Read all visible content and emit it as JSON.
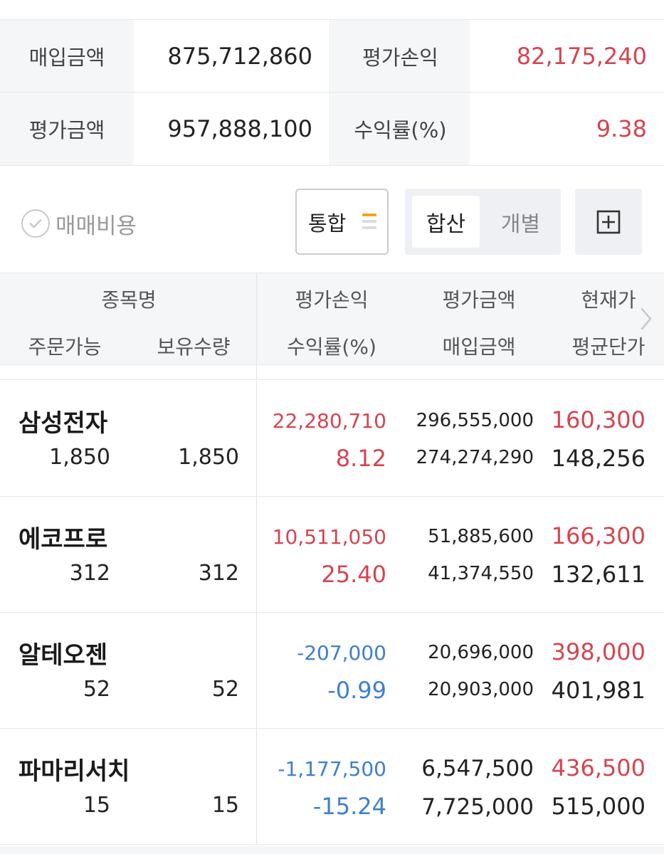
{
  "summary": {
    "purchase_label": "매입금액",
    "purchase_value": "875,712,860",
    "eval_pl_label": "평가손익",
    "eval_pl_value": "82,175,240",
    "eval_amount_label": "평가금액",
    "eval_amount_value": "957,888,100",
    "return_label": "수익률(%)",
    "return_value": "9.38"
  },
  "controls": {
    "fee_label": "매매비용",
    "merge_label": "통합",
    "seg_sum": "합산",
    "seg_individual": "개별",
    "colors": {
      "merge_bars": [
        "#f5a31a",
        "#d9dce1",
        "#d9dce1"
      ]
    }
  },
  "table": {
    "headers": {
      "name": "종목명",
      "orderable": "주문가능",
      "holding": "보유수량",
      "eval_pl": "평가손익",
      "return": "수익률(%)",
      "eval_amount": "평가금액",
      "purchase_amount": "매입금액",
      "current_price": "현재가",
      "avg_price": "평균단가"
    },
    "rows": [
      {
        "name": "삼성전자",
        "orderable": "1,850",
        "holding": "1,850",
        "eval_pl": "22,280,710",
        "return": "8.12",
        "eval_amount": "296,555,000",
        "purchase_amount": "274,274,290",
        "current_price": "160,300",
        "avg_price": "148,256",
        "trend": "up"
      },
      {
        "name": "에코프로",
        "orderable": "312",
        "holding": "312",
        "eval_pl": "10,511,050",
        "return": "25.40",
        "eval_amount": "51,885,600",
        "purchase_amount": "41,374,550",
        "current_price": "166,300",
        "avg_price": "132,611",
        "trend": "up"
      },
      {
        "name": "알테오젠",
        "orderable": "52",
        "holding": "52",
        "eval_pl": "-207,000",
        "return": "-0.99",
        "eval_amount": "20,696,000",
        "purchase_amount": "20,903,000",
        "current_price": "398,000",
        "avg_price": "401,981",
        "trend": "down"
      },
      {
        "name": "파마리서치",
        "orderable": "15",
        "holding": "15",
        "eval_pl": "-1,177,500",
        "return": "-15.24",
        "eval_amount": "6,547,500",
        "purchase_amount": "7,725,000",
        "current_price": "436,500",
        "avg_price": "515,000",
        "trend": "down"
      }
    ]
  },
  "colors": {
    "up": "#d6444f",
    "down": "#3d7fd1"
  }
}
